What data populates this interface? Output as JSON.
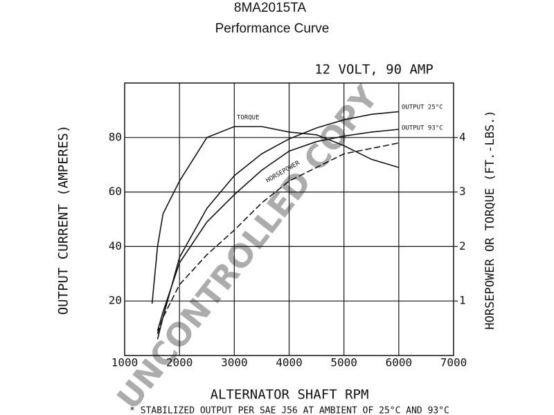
{
  "chart_data": {
    "type": "line",
    "title": "8MA2015TA",
    "subtitle": "Performance Curve",
    "annotation": "12 VOLT, 90 AMP",
    "ylabel": "OUTPUT CURRENT (AMPERES)",
    "y2label": "HORSEPOWER OR TORQUE (FT.-LBS.)",
    "xlabel": "ALTERNATOR SHAFT RPM",
    "footnote": "* STABILIZED OUTPUT PER SAE J56 AT AMBIENT OF 25°C AND 93°C",
    "watermark": "UNCONTROLLED COPY",
    "x": [
      1500,
      1600,
      1700,
      2000,
      2500,
      3000,
      3500,
      4000,
      4500,
      5000,
      5500,
      6000
    ],
    "xlim": [
      1000,
      7000
    ],
    "xticks": [
      1000,
      2000,
      3000,
      4000,
      5000,
      6000,
      7000
    ],
    "ylim": [
      0,
      100
    ],
    "yticks": [
      20,
      40,
      60,
      80
    ],
    "y2lim": [
      0,
      5
    ],
    "y2ticks": [
      1,
      2,
      3,
      4
    ],
    "grid": true,
    "series": [
      {
        "name": "TORQUE",
        "color": "#111111",
        "axis": "y2",
        "style": "solid",
        "values": [
          0.95,
          2.0,
          2.6,
          3.2,
          4.0,
          4.2,
          4.2,
          4.1,
          4.05,
          3.85,
          3.6,
          3.45
        ]
      },
      {
        "name": "OUTPUT 25°C",
        "color": "#111111",
        "style": "solid",
        "values": [
          null,
          6,
          14,
          36,
          54,
          66,
          74,
          79.5,
          83.5,
          86.5,
          88.5,
          89.5
        ]
      },
      {
        "name": "OUTPUT 93°C",
        "color": "#111111",
        "style": "solid",
        "values": [
          null,
          9,
          16,
          34,
          49,
          59,
          68,
          75,
          78.5,
          80.5,
          82,
          83
        ]
      },
      {
        "name": "HORSEPOWER",
        "color": "#111111",
        "axis": "y2",
        "style": "dashed",
        "values": [
          null,
          0.4,
          0.7,
          1.3,
          1.85,
          2.3,
          2.8,
          3.2,
          3.45,
          3.7,
          3.8,
          3.9
        ]
      }
    ]
  }
}
